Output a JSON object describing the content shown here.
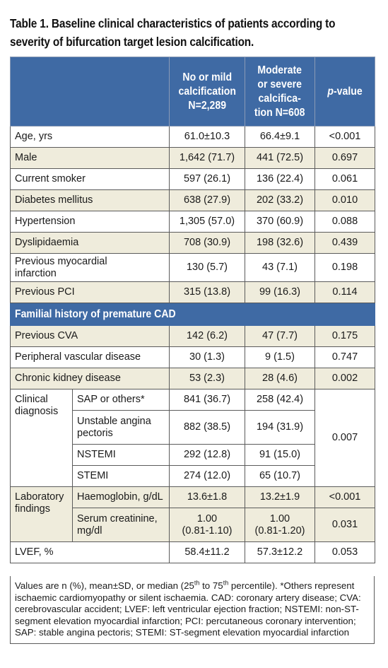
{
  "caption": {
    "line1": "Table 1. Baseline clinical characteristics of patients according to",
    "line2": "severity of bifurcation target lesion calcification."
  },
  "header": {
    "col2_l1": "No or mild",
    "col2_l2": "calcification",
    "col2_l3": "N=2,289",
    "col3_l1": "Moderate",
    "col3_l2": "or severe",
    "col3_l3": "calcifica-",
    "col3_l4": "tion N=608",
    "col4_italic": "p",
    "col4_rest": "-value"
  },
  "rows": [
    {
      "label": "Age, yrs",
      "a": "61.0±10.3",
      "b": "66.4±9.1",
      "p": "<0.001"
    },
    {
      "label": "Male",
      "a": "1,642 (71.7)",
      "b": "441 (72.5)",
      "p": "0.697"
    },
    {
      "label": "Current smoker",
      "a": "597 (26.1)",
      "b": "136 (22.4)",
      "p": "0.061"
    },
    {
      "label": "Diabetes mellitus",
      "a": "638 (27.9)",
      "b": "202 (33.2)",
      "p": "0.010"
    },
    {
      "label": "Hypertension",
      "a": "1,305 (57.0)",
      "b": "370 (60.9)",
      "p": "0.088"
    },
    {
      "label": "Dyslipidaemia",
      "a": "708 (30.9)",
      "b": "198 (32.6)",
      "p": "0.439"
    },
    {
      "label_l1": "Previous myocardial",
      "label_l2": "infarction",
      "a": "130 (5.7)",
      "b": "43 (7.1)",
      "p": "0.198"
    },
    {
      "label": "Previous PCI",
      "a": "315 (13.8)",
      "b": "99 (16.3)",
      "p": "0.114"
    }
  ],
  "section": "Familial history of premature CAD",
  "rows2": [
    {
      "label": "Previous CVA",
      "a": "142 (6.2)",
      "b": "47 (7.7)",
      "p": "0.175"
    },
    {
      "label": "Peripheral vascular disease",
      "a": "30 (1.3)",
      "b": "9 (1.5)",
      "p": "0.747"
    },
    {
      "label": "Chronic kidney disease",
      "a": "53 (2.3)",
      "b": "28 (4.6)",
      "p": "0.002"
    }
  ],
  "clinical": {
    "group_l1": "Clinical",
    "group_l2": "diagnosis",
    "p": "0.007",
    "items": [
      {
        "label": "SAP or others*",
        "a": "841 (36.7)",
        "b": "258 (42.4)"
      },
      {
        "label_l1": "Unstable angina",
        "label_l2": "pectoris",
        "a": "882 (38.5)",
        "b": "194 (31.9)"
      },
      {
        "label": "NSTEMI",
        "a": "292 (12.8)",
        "b": "91 (15.0)"
      },
      {
        "label": "STEMI",
        "a": "274 (12.0)",
        "b": "65 (10.7)"
      }
    ]
  },
  "lab": {
    "group_l1": "Laboratory",
    "group_l2": "findings",
    "items": [
      {
        "label": "Haemoglobin, g/dL",
        "a": "13.6±1.8",
        "b": "13.2±1.9",
        "p": "<0.001"
      },
      {
        "label_l1": "Serum creatinine,",
        "label_l2": "mg/dl",
        "a_l1": "1.00",
        "a_l2": "(0.81-1.10)",
        "b_l1": "1.00",
        "b_l2": "(0.81-1.20)",
        "p": "0.031"
      }
    ]
  },
  "lvef": {
    "label": "LVEF, %",
    "a": "58.4±11.2",
    "b": "57.3±12.2",
    "p": "0.053"
  },
  "footnote": {
    "part1": "Values are n (%), mean±SD, or median (25",
    "sup1": "th",
    "part2": " to 75",
    "sup2": "th",
    "part3": " percentile). *Others represent ischaemic cardiomyopathy or silent ischaemia. CAD: coronary artery disease; CVA: cerebrovascular accident; LVEF: left ventricular ejection fraction; NSTEMI: non-ST-segment elevation myocardial infarction; PCI: percutaneous coronary intervention; SAP: stable angina pectoris; STEMI: ST-segment elevation myocardial infarction"
  }
}
